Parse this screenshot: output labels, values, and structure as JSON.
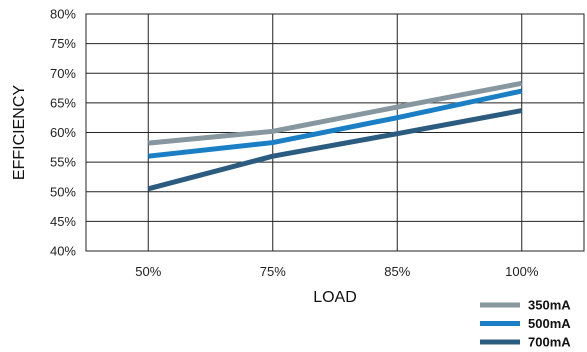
{
  "chart_data": {
    "type": "line",
    "xlabel": "LOAD",
    "ylabel": "EFFICIENCY",
    "categories": [
      "50%",
      "75%",
      "85%",
      "100%"
    ],
    "y_ticks": [
      "40%",
      "45%",
      "50%",
      "55%",
      "60%",
      "65%",
      "70%",
      "75%",
      "80%"
    ],
    "ylim": [
      40,
      80
    ],
    "grid": true,
    "legend_position": "bottom-right",
    "series": [
      {
        "name": "350mA",
        "color": "#86979f",
        "values": [
          58.2,
          60.2,
          64.3,
          68.3
        ]
      },
      {
        "name": "500mA",
        "color": "#1a7fc4",
        "values": [
          56.0,
          58.3,
          62.5,
          67.0
        ]
      },
      {
        "name": "700mA",
        "color": "#2b5c80",
        "values": [
          50.5,
          56.0,
          59.8,
          63.7
        ]
      }
    ]
  }
}
